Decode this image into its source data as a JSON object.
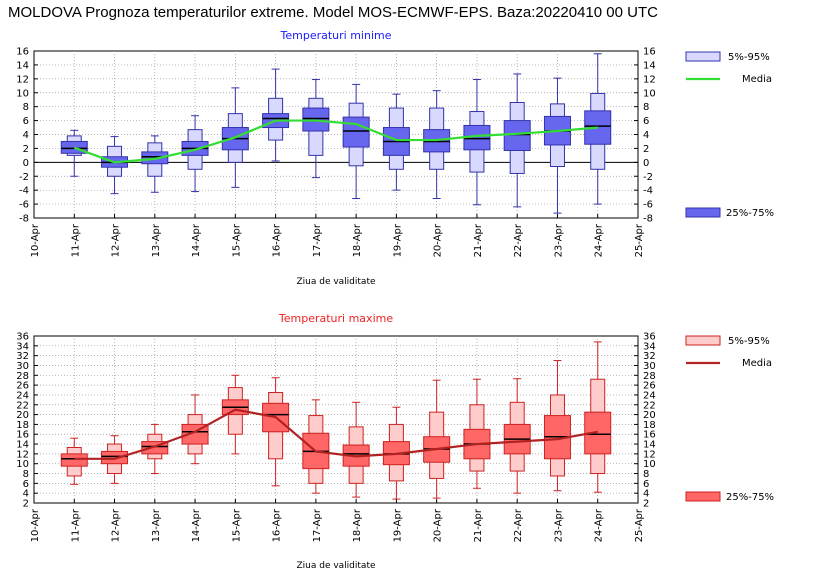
{
  "page_title": "MOLDOVA  Prognoza temperaturilor extreme.  Model MOS-ECMWF-EPS. Baza:20220410 00 UTC",
  "chart_data": [
    {
      "type": "boxplot",
      "title": "Temperaturi minime",
      "title_color": "#1a1aff",
      "xlabel": "Ziua de validitate",
      "ylabel": "",
      "categories": [
        "10-Apr",
        "11-Apr",
        "12-Apr",
        "13-Apr",
        "14-Apr",
        "15-Apr",
        "16-Apr",
        "17-Apr",
        "18-Apr",
        "19-Apr",
        "20-Apr",
        "21-Apr",
        "22-Apr",
        "23-Apr",
        "24-Apr",
        "25-Apr"
      ],
      "ylim": [
        -8,
        16
      ],
      "yticks": [
        -8,
        -6,
        -4,
        -2,
        0,
        2,
        4,
        6,
        8,
        10,
        12,
        14,
        16
      ],
      "grid": true,
      "legend_position": "right",
      "colors": {
        "outer": "#d9d9ff",
        "inner": "#6666ee",
        "edge": "#3333aa",
        "median": "#000000",
        "mean": "#33dd33"
      },
      "legend": {
        "outer": "5%-95%",
        "mean": "Media",
        "inner": "25%-75%"
      },
      "boxes": [
        {
          "day": "11-Apr",
          "whisker_low": -2,
          "p5": 1,
          "p25": 1.3,
          "median": 2,
          "p75": 3,
          "p95": 3.8,
          "whisker_high": 4.6,
          "mean": 2.1
        },
        {
          "day": "12-Apr",
          "whisker_low": -4.5,
          "p5": -2,
          "p25": -0.7,
          "median": 0,
          "p75": 0.8,
          "p95": 2.3,
          "whisker_high": 3.7,
          "mean": 0
        },
        {
          "day": "13-Apr",
          "whisker_low": -4.3,
          "p5": -2,
          "p25": -0.2,
          "median": 0.8,
          "p75": 1.5,
          "p95": 2.8,
          "whisker_high": 3.8,
          "mean": 0.5
        },
        {
          "day": "14-Apr",
          "whisker_low": -4.2,
          "p5": -1,
          "p25": 1,
          "median": 2,
          "p75": 3,
          "p95": 4.7,
          "whisker_high": 6.7,
          "mean": 1.8
        },
        {
          "day": "15-Apr",
          "whisker_low": -3.6,
          "p5": 0,
          "p25": 1.8,
          "median": 3.4,
          "p75": 5,
          "p95": 7,
          "whisker_high": 10.7,
          "mean": 3.6
        },
        {
          "day": "16-Apr",
          "whisker_low": 0.2,
          "p5": 3.2,
          "p25": 5,
          "median": 6.3,
          "p75": 7,
          "p95": 9.2,
          "whisker_high": 13.4,
          "mean": 6
        },
        {
          "day": "17-Apr",
          "whisker_low": -2.2,
          "p5": 1,
          "p25": 4.5,
          "median": 6.3,
          "p75": 7.8,
          "p95": 9.2,
          "whisker_high": 11.9,
          "mean": 6
        },
        {
          "day": "18-Apr",
          "whisker_low": -5.2,
          "p5": -0.5,
          "p25": 2.2,
          "median": 4.5,
          "p75": 6.5,
          "p95": 8.5,
          "whisker_high": 11.2,
          "mean": 5.5
        },
        {
          "day": "19-Apr",
          "whisker_low": -4,
          "p5": -1,
          "p25": 1,
          "median": 3,
          "p75": 5,
          "p95": 7.8,
          "whisker_high": 9.8,
          "mean": 3.2
        },
        {
          "day": "20-Apr",
          "whisker_low": -5.2,
          "p5": -1,
          "p25": 1.5,
          "median": 3,
          "p75": 4.7,
          "p95": 7.8,
          "whisker_high": 10.3,
          "mean": 3.2
        },
        {
          "day": "21-Apr",
          "whisker_low": -6.1,
          "p5": -1.4,
          "p25": 1.8,
          "median": 3.4,
          "p75": 5.3,
          "p95": 7.3,
          "whisker_high": 11.9,
          "mean": 3.8
        },
        {
          "day": "22-Apr",
          "whisker_low": -6.4,
          "p5": -1.6,
          "p25": 1.7,
          "median": 4,
          "p75": 6,
          "p95": 8.6,
          "whisker_high": 12.7,
          "mean": 4.1
        },
        {
          "day": "23-Apr",
          "whisker_low": -7.3,
          "p5": -0.6,
          "p25": 2.5,
          "median": 4.5,
          "p75": 6.6,
          "p95": 8.4,
          "whisker_high": 12.1,
          "mean": 4.5
        },
        {
          "day": "24-Apr",
          "whisker_low": -6,
          "p5": -1,
          "p25": 2.6,
          "median": 5.2,
          "p75": 7.4,
          "p95": 9.9,
          "whisker_high": 15.6,
          "mean": 5
        }
      ]
    },
    {
      "type": "boxplot",
      "title": "Temperaturi maxime",
      "title_color": "#ee2222",
      "xlabel": "Ziua de validitate",
      "ylabel": "",
      "categories": [
        "10-Apr",
        "11-Apr",
        "12-Apr",
        "13-Apr",
        "14-Apr",
        "15-Apr",
        "16-Apr",
        "17-Apr",
        "18-Apr",
        "19-Apr",
        "20-Apr",
        "21-Apr",
        "22-Apr",
        "23-Apr",
        "24-Apr",
        "25-Apr"
      ],
      "ylim": [
        2,
        36
      ],
      "yticks": [
        2,
        4,
        6,
        8,
        10,
        12,
        14,
        16,
        18,
        20,
        22,
        24,
        26,
        28,
        30,
        32,
        34,
        36
      ],
      "grid": true,
      "legend_position": "right",
      "colors": {
        "outer": "#ffcccc",
        "inner": "#ff6666",
        "edge": "#cc2222",
        "median": "#000000",
        "mean": "#b22222"
      },
      "legend": {
        "outer": "5%-95%",
        "mean": "Media",
        "inner": "25%-75%"
      },
      "boxes": [
        {
          "day": "11-Apr",
          "whisker_low": 5.8,
          "p5": 7.5,
          "p25": 9.5,
          "median": 11,
          "p75": 12,
          "p95": 13.3,
          "whisker_high": 15.2,
          "mean": 11
        },
        {
          "day": "12-Apr",
          "whisker_low": 6,
          "p5": 8,
          "p25": 10,
          "median": 11.5,
          "p75": 12.5,
          "p95": 14,
          "whisker_high": 15.7,
          "mean": 11
        },
        {
          "day": "13-Apr",
          "whisker_low": 8,
          "p5": 11,
          "p25": 12,
          "median": 13.5,
          "p75": 14.5,
          "p95": 16,
          "whisker_high": 18,
          "mean": 13.5
        },
        {
          "day": "14-Apr",
          "whisker_low": 10,
          "p5": 12,
          "p25": 14,
          "median": 16.5,
          "p75": 18,
          "p95": 20,
          "whisker_high": 24,
          "mean": 16.5
        },
        {
          "day": "15-Apr",
          "whisker_low": 12,
          "p5": 16,
          "p25": 20,
          "median": 21.5,
          "p75": 23,
          "p95": 25.5,
          "whisker_high": 28,
          "mean": 21
        },
        {
          "day": "16-Apr",
          "whisker_low": 5.5,
          "p5": 11,
          "p25": 16.5,
          "median": 20,
          "p75": 22.3,
          "p95": 24.5,
          "whisker_high": 27.5,
          "mean": 19.5
        },
        {
          "day": "17-Apr",
          "whisker_low": 4,
          "p5": 6,
          "p25": 9,
          "median": 12.5,
          "p75": 16.2,
          "p95": 19.8,
          "whisker_high": 23,
          "mean": 12.5
        },
        {
          "day": "18-Apr",
          "whisker_low": 3.2,
          "p5": 6,
          "p25": 9.5,
          "median": 12,
          "p75": 13.8,
          "p95": 17.5,
          "whisker_high": 22.5,
          "mean": 11.5
        },
        {
          "day": "19-Apr",
          "whisker_low": 2.8,
          "p5": 6.5,
          "p25": 9.8,
          "median": 12,
          "p75": 14.5,
          "p95": 18,
          "whisker_high": 21.5,
          "mean": 12
        },
        {
          "day": "20-Apr",
          "whisker_low": 3,
          "p5": 7,
          "p25": 10.3,
          "median": 13,
          "p75": 15.5,
          "p95": 20.5,
          "whisker_high": 27,
          "mean": 13
        },
        {
          "day": "21-Apr",
          "whisker_low": 5,
          "p5": 8.5,
          "p25": 11,
          "median": 14,
          "p75": 17,
          "p95": 22,
          "whisker_high": 27.2,
          "mean": 14
        },
        {
          "day": "22-Apr",
          "whisker_low": 4,
          "p5": 8.5,
          "p25": 12,
          "median": 15,
          "p75": 18,
          "p95": 22.5,
          "whisker_high": 27.3,
          "mean": 14.5
        },
        {
          "day": "23-Apr",
          "whisker_low": 4.5,
          "p5": 7.5,
          "p25": 11,
          "median": 15.5,
          "p75": 19.8,
          "p95": 24,
          "whisker_high": 31,
          "mean": 15
        },
        {
          "day": "24-Apr",
          "whisker_low": 4.2,
          "p5": 8,
          "p25": 12,
          "median": 16,
          "p75": 20.5,
          "p95": 27.2,
          "whisker_high": 34.8,
          "mean": 16.5
        }
      ]
    }
  ]
}
